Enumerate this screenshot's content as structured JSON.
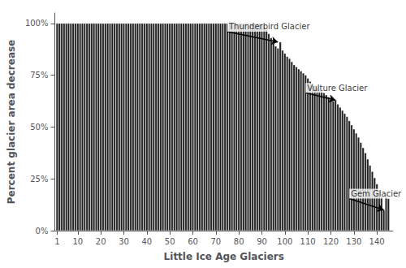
{
  "chart_data": {
    "type": "bar",
    "xlabel": "Little Ice Age Glaciers",
    "ylabel": "Percent glacier area decrease",
    "color": "#1a1a1a",
    "grid": false,
    "x": [
      1,
      2,
      3,
      4,
      5,
      6,
      7,
      8,
      9,
      10,
      11,
      12,
      13,
      14,
      15,
      16,
      17,
      18,
      19,
      20,
      21,
      22,
      23,
      24,
      25,
      26,
      27,
      28,
      29,
      30,
      31,
      32,
      33,
      34,
      35,
      36,
      37,
      38,
      39,
      40,
      41,
      42,
      43,
      44,
      45,
      46,
      47,
      48,
      49,
      50,
      51,
      52,
      53,
      54,
      55,
      56,
      57,
      58,
      59,
      60,
      61,
      62,
      63,
      64,
      65,
      66,
      67,
      68,
      69,
      70,
      71,
      72,
      73,
      74,
      75,
      76,
      77,
      78,
      79,
      80,
      81,
      82,
      83,
      84,
      85,
      86,
      87,
      88,
      89,
      90,
      91,
      92,
      93,
      94,
      95,
      96,
      97,
      98,
      99,
      100,
      101,
      102,
      103,
      104,
      105,
      106,
      107,
      108,
      109,
      110,
      111,
      112,
      113,
      114,
      115,
      116,
      117,
      118,
      119,
      120,
      121,
      122,
      123,
      124,
      125,
      126,
      127,
      128,
      129,
      130,
      131,
      132,
      133,
      134,
      135,
      136,
      137,
      138,
      139,
      140,
      141,
      142,
      143,
      144,
      145
    ],
    "values": [
      1.0,
      1.0,
      1.0,
      1.0,
      1.0,
      1.0,
      1.0,
      1.0,
      1.0,
      1.0,
      1.0,
      1.0,
      1.0,
      1.0,
      1.0,
      1.0,
      1.0,
      1.0,
      1.0,
      1.0,
      1.0,
      1.0,
      1.0,
      1.0,
      1.0,
      1.0,
      1.0,
      1.0,
      1.0,
      1.0,
      1.0,
      1.0,
      1.0,
      1.0,
      1.0,
      1.0,
      1.0,
      1.0,
      1.0,
      1.0,
      1.0,
      1.0,
      1.0,
      1.0,
      1.0,
      1.0,
      1.0,
      1.0,
      1.0,
      1.0,
      1.0,
      1.0,
      1.0,
      1.0,
      1.0,
      1.0,
      1.0,
      1.0,
      1.0,
      1.0,
      1.0,
      1.0,
      1.0,
      1.0,
      1.0,
      1.0,
      1.0,
      1.0,
      1.0,
      1.0,
      1.0,
      1.0,
      1.0,
      1.0,
      1.0,
      1.0,
      1.0,
      1.0,
      1.0,
      1.0,
      1.0,
      1.0,
      1.0,
      1.0,
      1.0,
      1.0,
      1.0,
      1.0,
      1.0,
      1.0,
      0.99,
      0.97,
      0.95,
      0.93,
      0.91,
      0.89,
      0.88,
      0.91,
      0.87,
      0.855,
      0.84,
      0.83,
      0.815,
      0.8,
      0.79,
      0.78,
      0.77,
      0.76,
      0.75,
      0.735,
      0.72,
      0.71,
      0.7,
      0.69,
      0.68,
      0.675,
      0.665,
      0.655,
      0.645,
      0.635,
      0.625,
      0.63,
      0.61,
      0.595,
      0.58,
      0.565,
      0.55,
      0.53,
      0.51,
      0.49,
      0.47,
      0.45,
      0.425,
      0.4,
      0.375,
      0.345,
      0.315,
      0.285,
      0.255,
      0.225,
      0.195,
      0.165,
      0.1,
      0.175,
      0.155
    ],
    "xlim": [
      0,
      147
    ],
    "xticks": [
      1,
      10,
      20,
      30,
      40,
      50,
      60,
      70,
      80,
      90,
      100,
      110,
      120,
      130,
      140
    ],
    "ylim": [
      0,
      1.05
    ],
    "yticks": [
      {
        "value": 0,
        "label": "0%"
      },
      {
        "value": 0.25,
        "label": "25%"
      },
      {
        "value": 0.5,
        "label": "50%"
      },
      {
        "value": 0.75,
        "label": "75%"
      },
      {
        "value": 1.0,
        "label": "100%"
      }
    ],
    "annotations": [
      {
        "text": "Thunderbird Glacier",
        "xy": [
          97,
          0.91
        ],
        "xytext": [
          75,
          0.96
        ]
      },
      {
        "text": "Vulture Glacier",
        "xy": [
          122,
          0.63
        ],
        "xytext": [
          109,
          0.665
        ]
      },
      {
        "text": "Gem Glacier",
        "xy": [
          143,
          0.1
        ],
        "xytext": [
          128,
          0.155
        ]
      }
    ]
  }
}
